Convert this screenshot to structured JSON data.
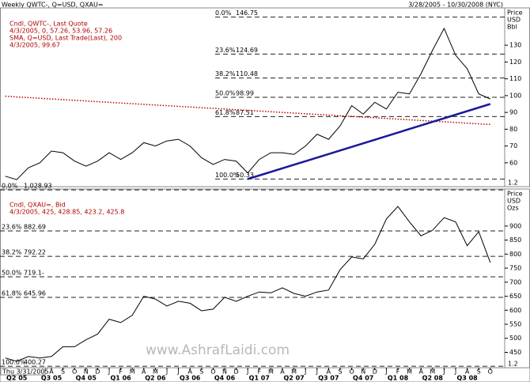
{
  "header": {
    "left": "Weekly QWTC-, Q=USD, QXAU=",
    "right": "3/28/2005 - 10/30/2008 (NYC)"
  },
  "watermark": "www.AshrafLaidi.com",
  "x_axis": {
    "start_label": "Thu 3/31/2005",
    "categories": [
      null,
      null,
      null,
      null,
      "A",
      "S",
      "O",
      "N",
      "D",
      "J",
      "F",
      "M",
      "A",
      "M",
      "J",
      "J",
      "A",
      "S",
      "O",
      "N",
      "D",
      "J",
      "F",
      "M",
      "A",
      "M",
      "J",
      "J",
      "A",
      "S",
      "O",
      "N",
      "D",
      "J",
      "F",
      "M",
      "A",
      "M",
      "J",
      "J",
      "A",
      "S",
      "O"
    ],
    "quarters": [
      "Q2 05",
      "Q3 05",
      "Q4 05",
      "Q1 06",
      "Q2 06",
      "Q3 06",
      "Q4 06",
      "Q1 07",
      "Q2 07",
      "Q3 07",
      "Q4 07",
      "Q1 08",
      "Q2 08",
      "Q3 08"
    ]
  },
  "chart_data": [
    {
      "type": "line",
      "legend_lines": [
        "Cndl, QWTC-, Last Quote",
        "4/3/2005, 0, 57.26, 53.96, 57.26",
        "SMA, Q=USD, Last Trade(Last), 200",
        "4/3/2005, 99.67"
      ],
      "axis_title": [
        "Price",
        "USD",
        "Bbl"
      ],
      "scale_label": "1.2",
      "series": [
        {
          "name": "Cndl, QWTC-, Last Quote",
          "color": "#000000",
          "style": "solid",
          "values": [
            52,
            50,
            57,
            60,
            67,
            66,
            61,
            58,
            61,
            66,
            62,
            66,
            72,
            70,
            73,
            74,
            70,
            63,
            59,
            62,
            61,
            54,
            62,
            66,
            66,
            65,
            70,
            77,
            74,
            82,
            94,
            89,
            96,
            92,
            102,
            101,
            113,
            127,
            140,
            124,
            116,
            101,
            98
          ]
        },
        {
          "name": "SMA, Q=USD, Last Trade(Last), 200",
          "color": "#c00000",
          "style": "dotted",
          "values": [
            99.67,
            99.2,
            98.8,
            98.4,
            98.0,
            97.6,
            97.2,
            96.8,
            96.4,
            96.0,
            95.6,
            95.2,
            94.8,
            94.4,
            94.0,
            93.6,
            93.2,
            92.8,
            92.4,
            92.0,
            91.6,
            91.2,
            90.8,
            90.4,
            90.0,
            89.6,
            89.2,
            88.8,
            88.4,
            88.0,
            87.6,
            87.2,
            86.8,
            86.4,
            86.0,
            85.6,
            85.2,
            84.8,
            84.4,
            84.0,
            83.6,
            83.2,
            82.8
          ]
        }
      ],
      "trendline": {
        "color": "#1a1a9a",
        "x": [
          21,
          42
        ],
        "values": [
          50.33,
          95
        ]
      },
      "fib_levels": [
        {
          "label": "0.0%",
          "value": 146.75
        },
        {
          "label": "23.6%",
          "value": 124.69
        },
        {
          "label": "38.2%",
          "value": 110.48
        },
        {
          "label": "50.0%",
          "value": 98.99
        },
        {
          "label": "61.8%",
          "value": 87.51
        },
        {
          "label": "100.0%",
          "value": 50.33
        }
      ],
      "ylim": [
        45.8,
        152.2
      ],
      "yticks": [
        60,
        70,
        80,
        90,
        100,
        110,
        120,
        130
      ]
    },
    {
      "type": "line",
      "legend_lines": [
        "Cndl, QXAU=, Bid",
        "4/3/2005, 425, 428.85, 423.2, 425.8"
      ],
      "axis_title": [
        "Price",
        "USD",
        "Ozs"
      ],
      "scale_label": "1.2",
      "series": [
        {
          "name": "Cndl, QXAU=, Bid",
          "color": "#000000",
          "style": "solid",
          "values": [
            430,
            418,
            435,
            430,
            435,
            470,
            470,
            495,
            515,
            568,
            556,
            582,
            650,
            640,
            615,
            632,
            625,
            598,
            604,
            646,
            632,
            650,
            665,
            662,
            680,
            660,
            650,
            665,
            672,
            745,
            790,
            783,
            835,
            925,
            970,
            915,
            865,
            885,
            930,
            915,
            830,
            880,
            770
          ]
        }
      ],
      "fib_levels": [
        {
          "label": "0.0%",
          "value": 1028.93,
          "value_label": "1,028.93"
        },
        {
          "label": "23.6%",
          "value": 882.69
        },
        {
          "label": "38.2%",
          "value": 792.22
        },
        {
          "label": "50.0%",
          "value": 719.1,
          "value_label": "719.1-"
        },
        {
          "label": "61.8%",
          "value": 645.96
        },
        {
          "label": "100.0%",
          "value": 400.27
        }
      ],
      "ylim": [
        395,
        1032
      ],
      "yticks": [
        450,
        500,
        550,
        600,
        650,
        700,
        750,
        800,
        850,
        900
      ]
    }
  ]
}
